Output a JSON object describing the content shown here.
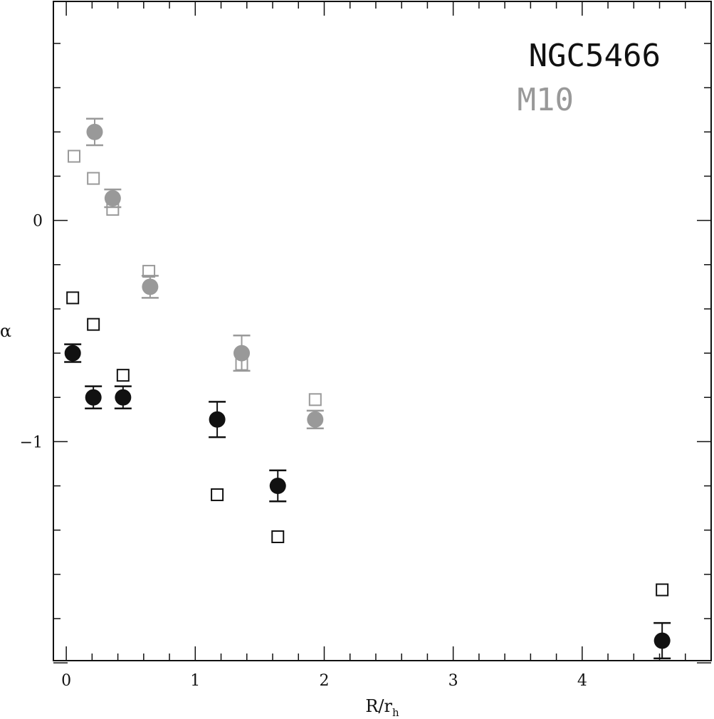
{
  "chart_data": {
    "type": "scatter",
    "title": "",
    "xlabel": "R/r",
    "xlabel_sub": "h",
    "ylabel": "α",
    "xlim": [
      -0.1,
      5.0
    ],
    "ylim": [
      -1.99,
      0.99
    ],
    "x_ticks": [
      0,
      1,
      2,
      3,
      4
    ],
    "y_ticks": [
      -1,
      0
    ],
    "grid": false,
    "legend": {
      "placement": "top-right",
      "entries": [
        {
          "label": "NGC5466",
          "color": "#111111"
        },
        {
          "label": "M10",
          "color": "#999999"
        }
      ]
    },
    "series": [
      {
        "name": "NGC5466",
        "marker": "filled-circle",
        "color": "#111111",
        "x": [
          0.05,
          0.21,
          0.44,
          1.17,
          1.64,
          4.62
        ],
        "y": [
          -0.6,
          -0.8,
          -0.8,
          -0.9,
          -1.2,
          -1.9
        ],
        "err": [
          0.04,
          0.05,
          0.05,
          0.08,
          0.07,
          0.08
        ]
      },
      {
        "name": "NGC5466",
        "marker": "open-square",
        "color": "#111111",
        "x": [
          0.05,
          0.21,
          0.44,
          1.17,
          1.64,
          4.62
        ],
        "y": [
          -0.35,
          -0.47,
          -0.7,
          -1.24,
          -1.43,
          -1.67
        ]
      },
      {
        "name": "M10",
        "marker": "filled-circle",
        "color": "#999999",
        "x": [
          0.22,
          0.36,
          0.65,
          1.36,
          1.93
        ],
        "y": [
          0.4,
          0.1,
          -0.3,
          -0.6,
          -0.9
        ],
        "err": [
          0.06,
          0.04,
          0.05,
          0.08,
          0.04
        ]
      },
      {
        "name": "M10",
        "marker": "open-square",
        "color": "#999999",
        "x": [
          0.06,
          0.21,
          0.36,
          0.64,
          1.36,
          1.93
        ],
        "y": [
          0.29,
          0.19,
          0.05,
          -0.23,
          -0.65,
          -0.81
        ]
      }
    ]
  }
}
